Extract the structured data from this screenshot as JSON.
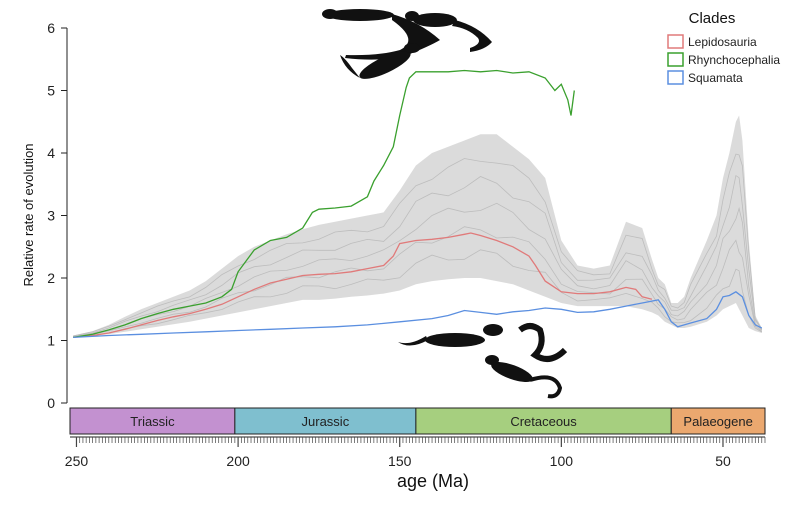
{
  "chart_data": {
    "type": "line",
    "title": "",
    "xlabel": "age (Ma)",
    "ylabel": "Relative rate of evolution",
    "xlim": [
      252,
      37
    ],
    "ylim": [
      0,
      6
    ],
    "x_reversed": true,
    "x_ticks": [
      250,
      200,
      150,
      100,
      50
    ],
    "y_ticks": [
      0,
      1,
      2,
      3,
      4,
      5,
      6
    ],
    "grid": false,
    "legend": {
      "title": "Clades",
      "placement": "top-right"
    },
    "periods": [
      {
        "name": "Triassic",
        "start": 252,
        "end": 201,
        "color": "#c391d0"
      },
      {
        "name": "Jurassic",
        "start": 201,
        "end": 145,
        "color": "#7fbfcf"
      },
      {
        "name": "Cretaceous",
        "start": 145,
        "end": 66,
        "color": "#a6cf7f"
      },
      {
        "name": "Palaeogene",
        "start": 66,
        "end": 37,
        "color": "#eba86f"
      }
    ],
    "series": [
      {
        "name": "Lepidosauria",
        "color": "#e07a7a",
        "x": [
          251,
          245,
          240,
          235,
          230,
          225,
          220,
          215,
          210,
          205,
          200,
          195,
          190,
          185,
          180,
          175,
          170,
          165,
          160,
          155,
          152,
          150,
          145,
          140,
          135,
          130,
          128,
          125,
          120,
          115,
          110,
          108,
          105,
          100,
          95,
          90,
          85,
          80,
          77,
          75,
          72
        ],
        "values": [
          1.05,
          1.08,
          1.12,
          1.18,
          1.25,
          1.32,
          1.38,
          1.43,
          1.5,
          1.58,
          1.7,
          1.82,
          1.92,
          1.98,
          2.04,
          2.06,
          2.07,
          2.1,
          2.15,
          2.2,
          2.35,
          2.55,
          2.6,
          2.62,
          2.65,
          2.7,
          2.72,
          2.68,
          2.6,
          2.5,
          2.35,
          2.2,
          1.95,
          1.78,
          1.75,
          1.75,
          1.78,
          1.85,
          1.82,
          1.7,
          1.66
        ]
      },
      {
        "name": "Rhynchocephalia",
        "color": "#3aa02e",
        "x": [
          251,
          245,
          240,
          235,
          230,
          225,
          220,
          215,
          210,
          205,
          202,
          200,
          195,
          190,
          185,
          180,
          177,
          175,
          170,
          165,
          160,
          158,
          155,
          152,
          150,
          148,
          147,
          145,
          140,
          135,
          130,
          125,
          120,
          115,
          110,
          105,
          102,
          100,
          98,
          97,
          96
        ],
        "values": [
          1.05,
          1.1,
          1.17,
          1.25,
          1.35,
          1.43,
          1.5,
          1.55,
          1.6,
          1.7,
          1.82,
          2.1,
          2.45,
          2.6,
          2.65,
          2.8,
          3.05,
          3.1,
          3.12,
          3.15,
          3.3,
          3.55,
          3.8,
          4.1,
          4.6,
          5.05,
          5.2,
          5.3,
          5.3,
          5.3,
          5.32,
          5.3,
          5.32,
          5.28,
          5.3,
          5.2,
          5.0,
          5.1,
          4.85,
          4.6,
          5.0
        ]
      },
      {
        "name": "Squamata",
        "color": "#5b8fe0",
        "x": [
          251,
          240,
          230,
          220,
          210,
          200,
          190,
          180,
          170,
          160,
          150,
          140,
          135,
          130,
          125,
          120,
          115,
          110,
          105,
          100,
          95,
          90,
          85,
          80,
          75,
          70,
          68,
          66,
          64,
          62,
          60,
          55,
          52,
          50,
          48,
          46,
          44,
          42,
          40,
          38
        ],
        "values": [
          1.05,
          1.08,
          1.1,
          1.12,
          1.14,
          1.16,
          1.18,
          1.2,
          1.22,
          1.25,
          1.3,
          1.35,
          1.4,
          1.48,
          1.45,
          1.42,
          1.46,
          1.48,
          1.52,
          1.5,
          1.45,
          1.46,
          1.5,
          1.55,
          1.6,
          1.65,
          1.5,
          1.3,
          1.22,
          1.25,
          1.28,
          1.35,
          1.5,
          1.7,
          1.72,
          1.78,
          1.7,
          1.4,
          1.25,
          1.2
        ]
      }
    ],
    "background_envelope": {
      "color": "#cfcfcf",
      "x": [
        251,
        245,
        240,
        235,
        230,
        225,
        220,
        215,
        210,
        205,
        200,
        195,
        190,
        185,
        180,
        175,
        170,
        165,
        160,
        155,
        150,
        145,
        140,
        135,
        130,
        125,
        120,
        115,
        110,
        105,
        100,
        95,
        90,
        85,
        80,
        75,
        72,
        70,
        68,
        66,
        64,
        62,
        60,
        55,
        52,
        50,
        48,
        46,
        45,
        44,
        42,
        40,
        38
      ],
      "lower": [
        1.05,
        1.07,
        1.1,
        1.14,
        1.18,
        1.22,
        1.26,
        1.3,
        1.35,
        1.4,
        1.45,
        1.5,
        1.55,
        1.6,
        1.65,
        1.65,
        1.67,
        1.7,
        1.72,
        1.75,
        1.8,
        1.9,
        1.95,
        1.98,
        2.0,
        2.0,
        1.95,
        1.9,
        1.8,
        1.7,
        1.6,
        1.55,
        1.55,
        1.55,
        1.55,
        1.5,
        1.45,
        1.4,
        1.3,
        1.25,
        1.2,
        1.2,
        1.22,
        1.3,
        1.4,
        1.5,
        1.55,
        1.6,
        1.5,
        1.4,
        1.2,
        1.15,
        1.12
      ],
      "upper": [
        1.08,
        1.15,
        1.25,
        1.38,
        1.5,
        1.6,
        1.7,
        1.8,
        1.95,
        2.15,
        2.35,
        2.5,
        2.6,
        2.7,
        2.78,
        2.85,
        2.9,
        2.95,
        3.0,
        3.05,
        3.4,
        3.8,
        4.0,
        4.1,
        4.2,
        4.3,
        4.3,
        4.1,
        3.9,
        3.6,
        2.6,
        2.2,
        2.15,
        2.2,
        2.9,
        2.8,
        2.3,
        2.0,
        1.9,
        1.6,
        1.6,
        1.7,
        2.0,
        2.6,
        3.0,
        3.6,
        4.0,
        4.5,
        4.6,
        4.2,
        2.6,
        1.4,
        1.2
      ]
    }
  }
}
